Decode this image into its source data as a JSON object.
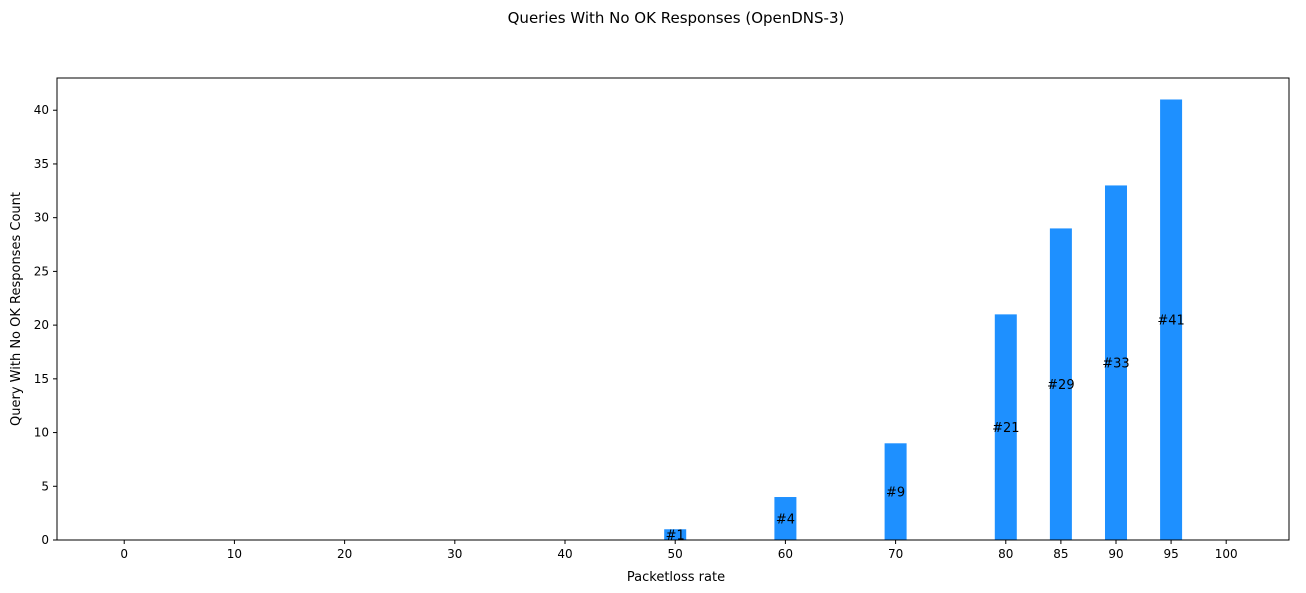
{
  "chart_data": {
    "type": "bar",
    "title": "Queries With No OK Responses (OpenDNS-3)",
    "xlabel": "Packetloss rate",
    "ylabel": "Query With No OK Responses Count",
    "categories": [
      "0",
      "10",
      "20",
      "30",
      "40",
      "50",
      "60",
      "70",
      "80",
      "85",
      "90",
      "95",
      "100"
    ],
    "values": [
      0,
      0,
      0,
      0,
      0,
      1,
      4,
      9,
      21,
      29,
      33,
      41,
      0
    ],
    "data_labels": [
      "",
      "",
      "",
      "",
      "",
      "#1",
      "#4",
      "#9",
      "#21",
      "#29",
      "#33",
      "#41",
      ""
    ],
    "yticks": [
      0,
      5,
      10,
      15,
      20,
      25,
      30,
      35,
      40
    ],
    "ylim": [
      0,
      43
    ],
    "bar_color": "#1e90ff",
    "grid": false,
    "legend": false
  }
}
